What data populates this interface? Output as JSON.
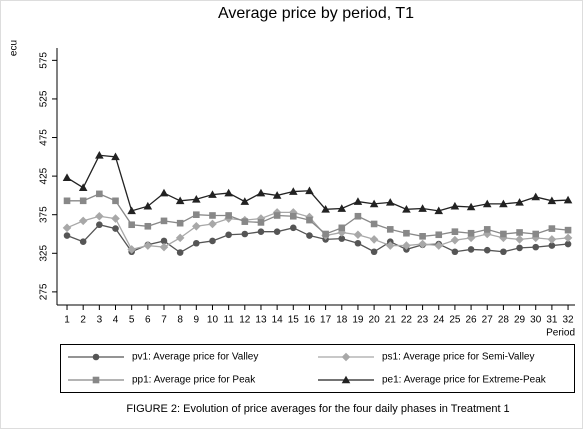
{
  "chart_data": {
    "type": "line",
    "title": "Average price by period, T1",
    "y_label": "ecu",
    "x_label": "Period",
    "caption": "FIGURE 2: Evolution of price averages for the four daily phases in Treatment 1",
    "x": [
      1,
      2,
      3,
      4,
      5,
      6,
      7,
      8,
      9,
      10,
      11,
      12,
      13,
      14,
      15,
      16,
      17,
      18,
      19,
      20,
      21,
      22,
      23,
      24,
      25,
      26,
      27,
      28,
      29,
      30,
      31,
      32
    ],
    "xlim": [
      0.38,
      32.43
    ],
    "xticks": [
      1,
      2,
      3,
      4,
      5,
      6,
      7,
      8,
      9,
      10,
      11,
      12,
      13,
      14,
      15,
      16,
      17,
      18,
      19,
      20,
      21,
      22,
      23,
      24,
      25,
      26,
      27,
      28,
      29,
      30,
      31,
      32
    ],
    "ylim": [
      258,
      591
    ],
    "yticks": [
      275,
      325,
      375,
      425,
      475,
      525,
      575
    ],
    "series": [
      {
        "name": "pv1: Average price for Valley",
        "color": "#555555",
        "marker": "circle",
        "values": [
          348,
          340,
          362,
          357,
          327,
          336,
          341,
          326,
          338,
          341,
          349,
          350,
          353,
          353,
          358,
          348,
          343,
          344,
          338,
          327,
          340,
          330,
          336,
          337,
          327,
          330,
          329,
          327,
          332,
          333,
          335,
          337
        ]
      },
      {
        "name": "ps1: Average price for Semi-Valley",
        "color": "#a8a8a8",
        "marker": "diamond",
        "values": [
          358,
          367,
          373,
          370,
          330,
          335,
          333,
          345,
          360,
          363,
          370,
          368,
          370,
          378,
          378,
          372,
          348,
          352,
          349,
          343,
          335,
          335,
          337,
          335,
          342,
          345,
          350,
          345,
          343,
          345,
          343,
          345
        ]
      },
      {
        "name": "pp1: Average price for Peak",
        "color": "#888888",
        "marker": "square",
        "values": [
          393,
          393,
          402,
          393,
          362,
          360,
          367,
          364,
          375,
          374,
          374,
          366,
          365,
          374,
          373,
          368,
          350,
          358,
          373,
          363,
          356,
          351,
          347,
          349,
          353,
          351,
          356,
          350,
          352,
          350,
          357,
          355
        ]
      },
      {
        "name": "pe1: Average price for Extreme-Peak",
        "color": "#222222",
        "marker": "triangle",
        "values": [
          423,
          410,
          452,
          450,
          380,
          386,
          403,
          393,
          395,
          401,
          403,
          392,
          403,
          400,
          405,
          406,
          382,
          383,
          392,
          389,
          391,
          382,
          383,
          380,
          386,
          385,
          389,
          389,
          391,
          398,
          393,
          394
        ]
      }
    ]
  }
}
